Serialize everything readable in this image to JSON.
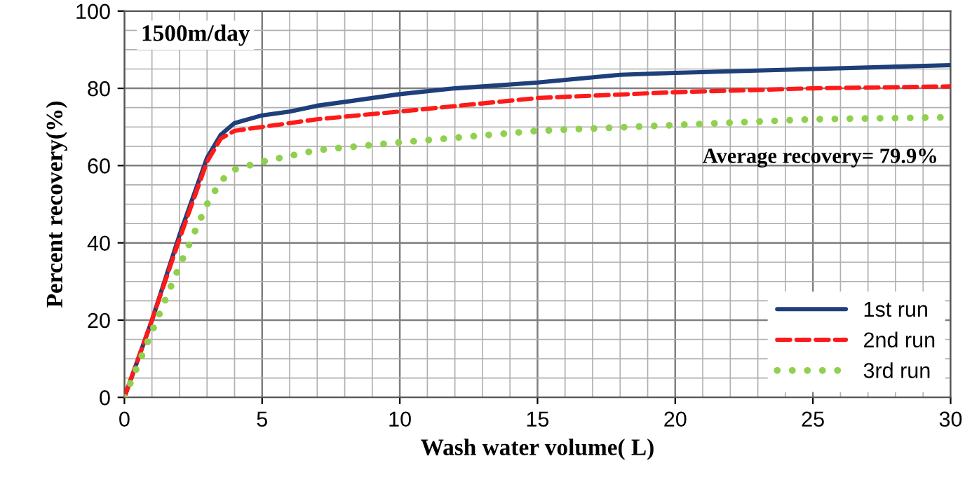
{
  "chart_data": {
    "type": "line",
    "xlabel": "Wash water volume( L)",
    "ylabel": "Percent recovery(%)",
    "annotations": [
      "1500m/day",
      "Average recovery= 79.9%"
    ],
    "xlim": [
      0,
      30
    ],
    "xticks": [
      0,
      5,
      10,
      15,
      20,
      25,
      30
    ],
    "ylim": [
      0,
      100
    ],
    "yticks": [
      0,
      20,
      40,
      60,
      80,
      100
    ],
    "grid": true,
    "legend": "bottom right",
    "marker": "none",
    "series": [
      {
        "name": "1st run",
        "color": "#1f3f7a",
        "line_style": "solid",
        "x": [
          0,
          1,
          2,
          3,
          3.5,
          4,
          5,
          6,
          7,
          10,
          12,
          15,
          18,
          20,
          25,
          30
        ],
        "values": [
          0,
          20,
          42,
          62,
          68,
          71,
          73,
          74,
          75.5,
          78.5,
          80,
          81.5,
          83.5,
          84,
          85,
          86
        ]
      },
      {
        "name": "2nd run",
        "color": "#ff1a1a",
        "line_style": "dashed",
        "x": [
          0,
          1,
          2,
          3,
          3.5,
          4,
          5,
          7,
          10,
          15,
          20,
          25,
          30
        ],
        "values": [
          0,
          20,
          41,
          61,
          67,
          69,
          70,
          72,
          74,
          77.5,
          79,
          80,
          80.5
        ]
      },
      {
        "name": "3rd run",
        "color": "#8fd14f",
        "line_style": "dotted",
        "x": [
          0,
          1,
          2,
          2.5,
          3,
          3.5,
          4,
          5,
          7,
          10,
          15,
          20,
          25,
          30
        ],
        "values": [
          0,
          17,
          34,
          42,
          50,
          56,
          59,
          61,
          64,
          66,
          69,
          70.5,
          72,
          72.5
        ]
      }
    ]
  }
}
